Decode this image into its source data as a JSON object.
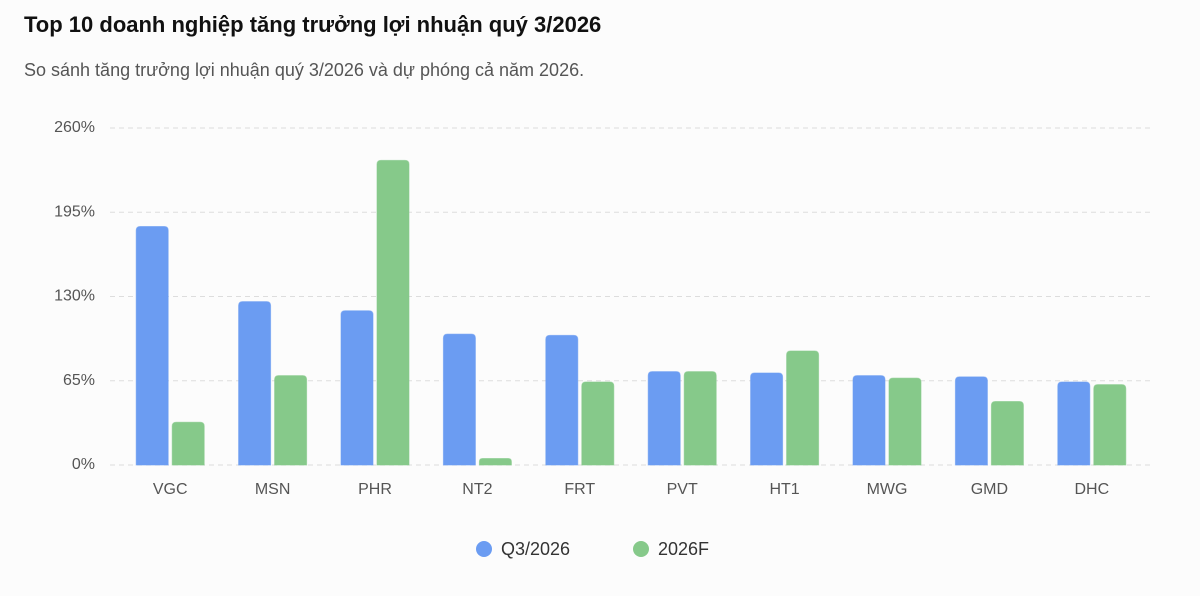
{
  "chart_data": {
    "type": "bar",
    "title": "Top 10 doanh nghiệp tăng trưởng lợi nhuận quý 3/2026",
    "subtitle": "So sánh tăng trưởng lợi nhuận quý 3/2026 và dự phóng cả năm 2026.",
    "categories": [
      "VGC",
      "MSN",
      "PHR",
      "NT2",
      "FRT",
      "PVT",
      "HT1",
      "MWG",
      "GMD",
      "DHC"
    ],
    "series": [
      {
        "name": "Q3/2026",
        "color": "#6b9cf2",
        "values": [
          184,
          126,
          119,
          101,
          100,
          72,
          71,
          69,
          68,
          64
        ]
      },
      {
        "name": "2026F",
        "color": "#86c98a",
        "values": [
          33,
          69,
          235,
          5,
          64,
          72,
          88,
          67,
          49,
          62
        ]
      }
    ],
    "ylim": [
      0,
      260
    ],
    "yticks": [
      {
        "value": 0,
        "label": "0%"
      },
      {
        "value": 65,
        "label": "65%"
      },
      {
        "value": 130,
        "label": "130%"
      },
      {
        "value": 195,
        "label": "195%"
      },
      {
        "value": 260,
        "label": "260%"
      }
    ],
    "grid": true,
    "legend": "bottom"
  }
}
